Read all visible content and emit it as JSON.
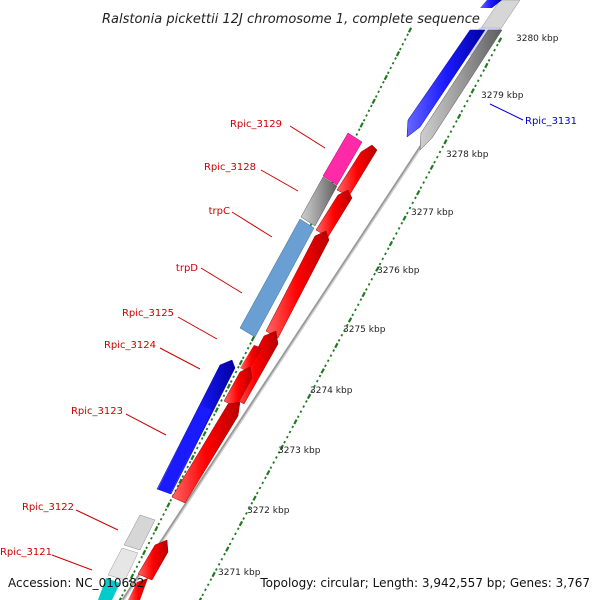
{
  "title": "Ralstonia pickettii 12J chromosome 1, complete sequence",
  "footer": {
    "accession": "Accession: NC_010682",
    "topology": "Topology: circular; Length: 3,942,557 bp; Genes: 3,767"
  },
  "colors": {
    "background": "#ffffff",
    "backbone": "#9a9a9a",
    "tick_green": "#1f7a1f",
    "label_red": "#cc0000",
    "label_blue": "#0000cc"
  },
  "kbp_ticks": [
    {
      "label": "3280 kbp"
    },
    {
      "label": "3279 kbp"
    },
    {
      "label": "3278 kbp"
    },
    {
      "label": "3277 kbp"
    },
    {
      "label": "3276 kbp"
    },
    {
      "label": "3275 kbp"
    },
    {
      "label": "3274 kbp"
    },
    {
      "label": "3273 kbp"
    },
    {
      "label": "3272 kbp"
    },
    {
      "label": "3271 kbp"
    }
  ],
  "genes": [
    {
      "name": "Rpic_3121",
      "label_color": "#cc0000"
    },
    {
      "name": "Rpic_3122",
      "label_color": "#cc0000"
    },
    {
      "name": "Rpic_3123",
      "label_color": "#cc0000"
    },
    {
      "name": "Rpic_3124",
      "label_color": "#cc0000"
    },
    {
      "name": "Rpic_3125",
      "label_color": "#cc0000"
    },
    {
      "name": "trpD",
      "label_color": "#cc0000"
    },
    {
      "name": "trpC",
      "label_color": "#cc0000"
    },
    {
      "name": "Rpic_3128",
      "label_color": "#cc0000"
    },
    {
      "name": "Rpic_3129",
      "label_color": "#cc0000"
    },
    {
      "name": "Rpic_3131",
      "label_color": "#0000cc"
    }
  ],
  "features": [
    {
      "color": "#ff0000",
      "direction": "forward"
    },
    {
      "color": "#d0d0d0",
      "direction": "none"
    },
    {
      "color": "#1a1aff",
      "direction": "reverse"
    },
    {
      "color": "#6a9fd4",
      "direction": "none"
    },
    {
      "color": "#7f7f7f",
      "direction": "none"
    },
    {
      "color": "#ff2aa8",
      "direction": "none"
    },
    {
      "color": "#00cccc",
      "direction": "none"
    }
  ]
}
